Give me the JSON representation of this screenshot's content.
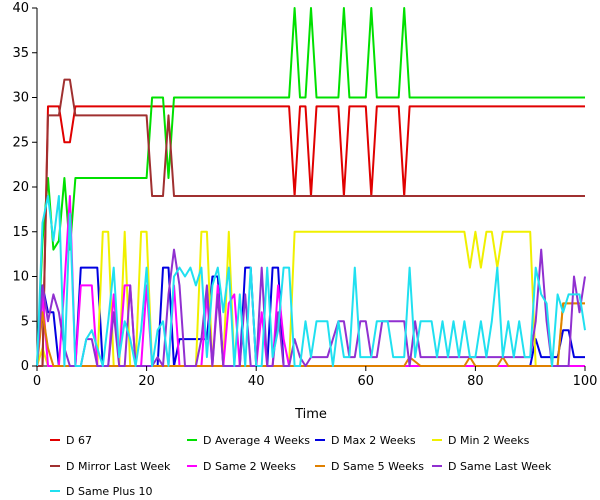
{
  "chart_data": {
    "type": "line",
    "title": "",
    "xlabel": "Time",
    "ylabel": "",
    "xlim": [
      0,
      100
    ],
    "ylim": [
      0,
      40
    ],
    "x_ticks": [
      0,
      20,
      40,
      60,
      80,
      100
    ],
    "y_ticks": [
      0,
      5,
      10,
      15,
      20,
      25,
      30,
      35,
      40
    ],
    "grid": false,
    "legend_position": "bottom",
    "series": [
      {
        "name": "D 67",
        "color": "#e00000",
        "x": [
          0,
          1,
          2,
          4,
          5,
          6,
          7,
          8,
          10,
          15,
          20,
          25,
          30,
          35,
          40,
          45,
          46,
          47,
          48,
          49,
          50,
          51,
          52,
          55,
          56,
          57,
          58,
          60,
          61,
          62,
          63,
          66,
          67,
          68,
          70,
          75,
          80,
          85,
          90,
          95,
          100
        ],
        "y": [
          0,
          0,
          29,
          29,
          25,
          25,
          29,
          29,
          29,
          29,
          29,
          29,
          29,
          29,
          29,
          29,
          29,
          19,
          29,
          29,
          19,
          29,
          29,
          29,
          19,
          29,
          29,
          29,
          19,
          29,
          29,
          29,
          19,
          29,
          29,
          29,
          29,
          29,
          29,
          29,
          29
        ]
      },
      {
        "name": "D Average 4 Weeks",
        "color": "#00e000",
        "x": [
          0,
          1,
          2,
          3,
          4,
          5,
          6,
          7,
          8,
          10,
          15,
          20,
          21,
          23,
          24,
          25,
          30,
          40,
          45,
          46,
          47,
          48,
          49,
          50,
          51,
          52,
          55,
          56,
          57,
          58,
          60,
          61,
          62,
          63,
          66,
          67,
          68,
          70,
          80,
          90,
          100
        ],
        "y": [
          0,
          14,
          21,
          13,
          14,
          21,
          13,
          21,
          21,
          21,
          21,
          21,
          30,
          30,
          21,
          30,
          30,
          30,
          30,
          30,
          40,
          30,
          30,
          40,
          30,
          30,
          30,
          40,
          30,
          30,
          30,
          40,
          30,
          30,
          30,
          40,
          30,
          30,
          30,
          30,
          30
        ]
      },
      {
        "name": "D Max 2 Weeks",
        "color": "#0000e0",
        "x": [
          0,
          1,
          2,
          3,
          4,
          5,
          6,
          7,
          8,
          9,
          10,
          11,
          12,
          13,
          14,
          15,
          16,
          17,
          18,
          19,
          20,
          21,
          22,
          23,
          24,
          25,
          26,
          27,
          28,
          29,
          30,
          31,
          32,
          33,
          34,
          35,
          36,
          37,
          38,
          39,
          40,
          41,
          42,
          43,
          44,
          45,
          46,
          47,
          48,
          49,
          50,
          52,
          55,
          58,
          60,
          62,
          65,
          68,
          70,
          75,
          80,
          85,
          90,
          91,
          92,
          93,
          94,
          95,
          96,
          97,
          98,
          99,
          100
        ],
        "y": [
          0,
          9,
          6,
          6,
          0,
          0,
          0,
          0,
          11,
          11,
          11,
          11,
          0,
          0,
          0,
          0,
          0,
          0,
          0,
          0,
          0,
          0,
          0,
          11,
          11,
          0,
          3,
          3,
          3,
          3,
          3,
          3,
          10,
          10,
          0,
          0,
          0,
          0,
          11,
          11,
          0,
          0,
          0,
          11,
          11,
          0,
          0,
          0,
          0,
          0,
          0,
          0,
          0,
          0,
          0,
          0,
          0,
          0,
          0,
          0,
          0,
          0,
          0,
          3,
          1,
          1,
          1,
          1,
          4,
          4,
          1,
          1,
          1
        ]
      },
      {
        "name": "D Min 2 Weeks",
        "color": "#f0f000",
        "x": [
          0,
          1,
          2,
          3,
          4,
          5,
          6,
          7,
          8,
          9,
          10,
          11,
          12,
          13,
          14,
          15,
          16,
          17,
          18,
          19,
          20,
          21,
          22,
          23,
          24,
          25,
          26,
          27,
          28,
          29,
          30,
          31,
          32,
          33,
          34,
          35,
          36,
          37,
          38,
          39,
          40,
          45,
          46,
          47,
          48,
          50,
          55,
          58,
          60,
          65,
          66,
          67,
          68,
          70,
          75,
          78,
          79,
          80,
          81,
          82,
          83,
          84,
          85,
          86,
          87,
          90,
          91,
          92,
          93,
          94,
          95,
          96,
          97,
          98,
          99,
          100
        ],
        "y": [
          0,
          2,
          0,
          0,
          0,
          0,
          0,
          0,
          0,
          0,
          0,
          0,
          15,
          15,
          0,
          0,
          15,
          0,
          0,
          15,
          15,
          0,
          0,
          0,
          0,
          0,
          0,
          0,
          0,
          0,
          15,
          15,
          0,
          0,
          0,
          15,
          0,
          0,
          0,
          0,
          0,
          0,
          0,
          15,
          15,
          15,
          15,
          15,
          15,
          15,
          15,
          15,
          15,
          15,
          15,
          15,
          11,
          15,
          11,
          15,
          15,
          11,
          15,
          15,
          15,
          15,
          0,
          0,
          0,
          0,
          0,
          7,
          7,
          7,
          7,
          7
        ]
      },
      {
        "name": "D Mirror Last Week",
        "color": "#a03030",
        "x": [
          0,
          1,
          2,
          3,
          4,
          5,
          6,
          7,
          8,
          10,
          15,
          20,
          21,
          22,
          23,
          24,
          25,
          30,
          40,
          50,
          60,
          70,
          80,
          90,
          100
        ],
        "y": [
          0,
          0,
          28,
          28,
          28,
          32,
          32,
          28,
          28,
          28,
          28,
          28,
          19,
          19,
          19,
          28,
          19,
          19,
          19,
          19,
          19,
          19,
          19,
          19,
          19
        ]
      },
      {
        "name": "D Same 2 Weeks",
        "color": "#ff00ff",
        "x": [
          0,
          1,
          2,
          3,
          4,
          5,
          6,
          7,
          8,
          9,
          10,
          11,
          12,
          13,
          14,
          15,
          16,
          17,
          18,
          19,
          20,
          21,
          22,
          23,
          24,
          25,
          26,
          27,
          28,
          29,
          30,
          31,
          32,
          33,
          34,
          35,
          36,
          37,
          38,
          39,
          40,
          41,
          42,
          43,
          44,
          45,
          46,
          47,
          48,
          49,
          50,
          52,
          55,
          60,
          65,
          70,
          75,
          80,
          85,
          90,
          95,
          100
        ],
        "y": [
          0,
          8,
          0,
          0,
          0,
          9,
          19,
          0,
          9,
          9,
          9,
          0,
          0,
          0,
          8,
          1,
          9,
          9,
          0,
          0,
          9,
          0,
          0,
          0,
          0,
          9,
          0,
          0,
          0,
          0,
          0,
          8,
          0,
          9,
          0,
          7,
          8,
          0,
          0,
          0,
          0,
          6,
          0,
          0,
          9,
          3,
          0,
          0,
          0,
          0,
          0,
          0,
          0,
          0,
          0,
          0,
          0,
          0,
          0,
          0,
          0,
          0
        ]
      },
      {
        "name": "D Same 5 Weeks",
        "color": "#e08000",
        "x": [
          0,
          1,
          2,
          3,
          4,
          10,
          20,
          30,
          40,
          50,
          60,
          67,
          68,
          70,
          78,
          79,
          80,
          84,
          85,
          86,
          90,
          94,
          95,
          96,
          97,
          98,
          99,
          100
        ],
        "y": [
          0,
          6,
          2,
          0,
          0,
          0,
          0,
          0,
          0,
          0,
          0,
          0,
          1,
          0,
          0,
          1,
          0,
          0,
          1,
          0,
          0,
          0,
          0,
          7,
          7,
          7,
          7,
          7
        ]
      },
      {
        "name": "D Same Last Week",
        "color": "#9030d0",
        "x": [
          0,
          1,
          2,
          3,
          4,
          5,
          6,
          7,
          8,
          9,
          10,
          11,
          12,
          13,
          14,
          15,
          16,
          17,
          18,
          19,
          20,
          21,
          22,
          23,
          24,
          25,
          26,
          27,
          28,
          29,
          30,
          31,
          32,
          33,
          34,
          35,
          36,
          37,
          38,
          39,
          40,
          41,
          42,
          43,
          44,
          45,
          46,
          47,
          48,
          49,
          50,
          51,
          52,
          53,
          54,
          55,
          56,
          57,
          58,
          59,
          60,
          61,
          62,
          63,
          64,
          65,
          66,
          67,
          68,
          69,
          70,
          71,
          72,
          73,
          74,
          75,
          76,
          77,
          78,
          79,
          80,
          81,
          82,
          83,
          84,
          85,
          86,
          87,
          88,
          89,
          90,
          91,
          92,
          93,
          94,
          95,
          96,
          97,
          98,
          99,
          100
        ],
        "y": [
          0,
          9,
          5,
          8,
          6,
          2,
          0,
          0,
          0,
          3,
          3,
          0,
          0,
          0,
          6,
          0,
          0,
          9,
          0,
          0,
          0,
          0,
          1,
          0,
          8,
          13,
          9,
          0,
          0,
          0,
          3,
          9,
          0,
          8,
          0,
          0,
          0,
          0,
          8,
          0,
          0,
          11,
          0,
          0,
          6,
          0,
          0,
          3,
          1,
          0,
          1,
          1,
          1,
          1,
          3,
          5,
          5,
          1,
          1,
          5,
          5,
          1,
          1,
          5,
          5,
          5,
          5,
          5,
          0,
          5,
          1,
          1,
          1,
          1,
          1,
          1,
          1,
          1,
          1,
          1,
          1,
          1,
          1,
          1,
          1,
          1,
          1,
          1,
          1,
          1,
          1,
          5,
          13,
          5,
          0,
          0,
          0,
          0,
          10,
          6,
          10
        ]
      },
      {
        "name": "D Same Plus 10",
        "color": "#20e0f0",
        "x": [
          0,
          1,
          2,
          3,
          4,
          5,
          6,
          7,
          8,
          9,
          10,
          11,
          12,
          13,
          14,
          15,
          16,
          17,
          18,
          19,
          20,
          21,
          22,
          23,
          24,
          25,
          26,
          27,
          28,
          29,
          30,
          31,
          32,
          33,
          34,
          35,
          36,
          37,
          38,
          39,
          40,
          41,
          42,
          43,
          44,
          45,
          46,
          47,
          48,
          49,
          50,
          51,
          52,
          53,
          54,
          55,
          56,
          57,
          58,
          59,
          60,
          61,
          62,
          63,
          64,
          65,
          66,
          67,
          68,
          69,
          70,
          71,
          72,
          73,
          74,
          75,
          76,
          77,
          78,
          79,
          80,
          81,
          82,
          83,
          84,
          85,
          86,
          87,
          88,
          89,
          90,
          91,
          92,
          93,
          94,
          95,
          96,
          97,
          98,
          99,
          100
        ],
        "y": [
          0,
          16,
          19,
          14,
          19,
          0,
          17,
          0,
          0,
          3,
          4,
          2,
          0,
          5,
          11,
          1,
          5,
          3,
          0,
          4,
          11,
          0,
          4,
          5,
          0,
          10,
          11,
          10,
          11,
          9,
          11,
          1,
          9,
          11,
          6,
          11,
          0,
          8,
          0,
          11,
          0,
          0,
          11,
          1,
          4,
          11,
          11,
          0,
          0,
          5,
          1,
          5,
          5,
          5,
          0,
          5,
          1,
          1,
          11,
          1,
          1,
          1,
          5,
          5,
          5,
          1,
          1,
          1,
          11,
          1,
          5,
          5,
          5,
          1,
          5,
          1,
          5,
          1,
          5,
          1,
          1,
          5,
          1,
          5,
          11,
          1,
          5,
          1,
          5,
          1,
          1,
          11,
          8,
          7,
          0,
          8,
          6,
          8,
          8,
          8,
          4
        ]
      }
    ]
  }
}
